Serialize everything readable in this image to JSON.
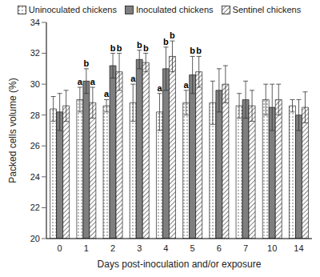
{
  "chart_data": {
    "type": "bar",
    "x_label": "Days post-inoculation and/or exposure",
    "y_label": "Packed cells volume (%)",
    "categories": [
      0,
      1,
      2,
      3,
      4,
      5,
      6,
      7,
      10,
      14
    ],
    "ylim": [
      20,
      34
    ],
    "yticks": [
      20,
      22,
      24,
      26,
      28,
      30,
      32,
      34
    ],
    "grid": false,
    "legend": "top",
    "series": [
      {
        "name": "Uninoculated chickens",
        "color": "#ffffff",
        "values": [
          28.4,
          29.0,
          28.6,
          28.8,
          28.2,
          28.8,
          28.8,
          28.6,
          29.0,
          28.6
        ],
        "errors": [
          0.8,
          0.8,
          0.4,
          1.2,
          1.2,
          0.8,
          1.4,
          0.8,
          1.0,
          0.4
        ],
        "annotations": [
          null,
          "a",
          "a",
          "a",
          "a",
          "a",
          null,
          null,
          null,
          null
        ]
      },
      {
        "name": "Inoculated chickens",
        "color": "#7f7f7f",
        "values": [
          28.2,
          30.2,
          31.2,
          31.6,
          31.0,
          30.6,
          29.6,
          29.0,
          28.5,
          28.0
        ],
        "errors": [
          1.2,
          0.8,
          0.8,
          0.6,
          1.4,
          1.2,
          1.4,
          1.2,
          1.5,
          1.0
        ],
        "annotations": [
          null,
          "b",
          "b",
          "b",
          "b",
          "b",
          null,
          null,
          null,
          null
        ]
      },
      {
        "name": "Sentinel chickens",
        "color": "#ffffff",
        "values": [
          28.6,
          28.8,
          30.8,
          31.4,
          31.8,
          30.8,
          30.0,
          28.6,
          29.0,
          28.5
        ],
        "errors": [
          1.0,
          1.0,
          1.2,
          0.6,
          1.0,
          1.0,
          1.2,
          1.0,
          1.0,
          1.0
        ],
        "annotations": [
          null,
          "a",
          "b",
          "b",
          "b",
          "b",
          null,
          null,
          null,
          null
        ]
      }
    ]
  }
}
